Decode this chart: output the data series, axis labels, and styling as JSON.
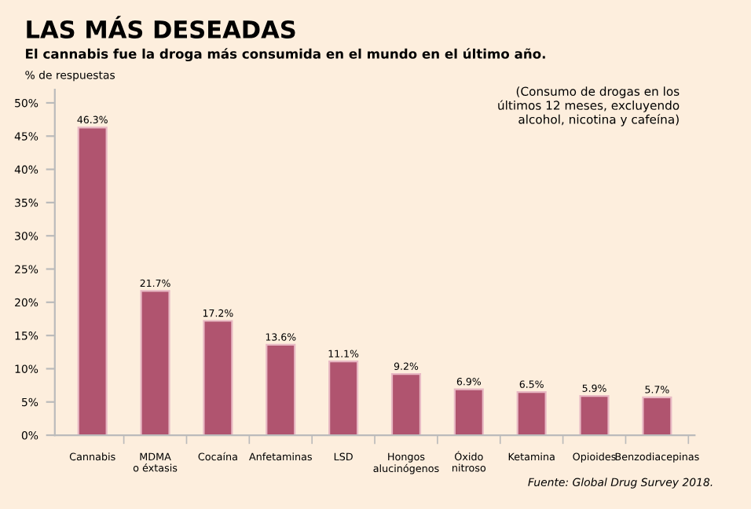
{
  "chart_data": {
    "type": "bar",
    "title": "LAS MÁS DESEADAS",
    "subtitle": "El cannabis fue la droga más consumida en el mundo en el último año.",
    "ylabel": "% de respuestas",
    "categories": [
      "Cannabis",
      "MDMA\no éxtasis",
      "Cocaína",
      "Anfetaminas",
      "LSD",
      "Hongos\nalucinógenos",
      "Óxido\nnitroso",
      "Ketamina",
      "Opioides",
      "Benzodiacepinas"
    ],
    "values": [
      46.3,
      21.7,
      17.2,
      13.6,
      11.1,
      9.2,
      6.9,
      6.5,
      5.9,
      5.7
    ],
    "value_labels": [
      "46.3%",
      "21.7%",
      "17.2%",
      "13.6%",
      "11.1%",
      "9.2%",
      "6.9%",
      "6.5%",
      "5.9%",
      "5.7%"
    ],
    "color": "#b0546f",
    "ylim": [
      0,
      52
    ],
    "yticks": [
      {
        "value": 0,
        "label": "0%"
      },
      {
        "value": 5,
        "label": "5%"
      },
      {
        "value": 10,
        "label": "10%"
      },
      {
        "value": 15,
        "label": "15%"
      },
      {
        "value": 20,
        "label": "20%"
      },
      {
        "value": 25,
        "label": "25%"
      },
      {
        "value": 30,
        "label": "30%"
      },
      {
        "value": 35,
        "label": "35%"
      },
      {
        "value": 40,
        "label": "40%"
      },
      {
        "value": 45,
        "label": "45%"
      },
      {
        "value": 50,
        "label": "50%"
      }
    ],
    "grid": false,
    "legend": false,
    "annotations": [
      "(Consumo de drogas en los\núltimos 12 meses, excluyendo\nalcohol, nicotina y cafeína)",
      "Fuente: Global Drug Survey 2018."
    ]
  }
}
